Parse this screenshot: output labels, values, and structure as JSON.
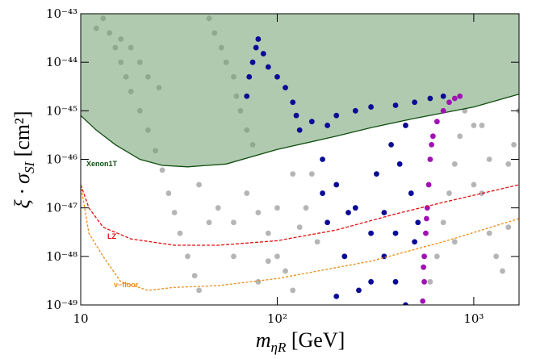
{
  "chart_data": {
    "type": "scatter",
    "x_label": {
      "text": "m",
      "sub": "ηR",
      "unit": " [GeV]"
    },
    "y_label": {
      "text": "ξ · σ",
      "sub": "SI",
      "unit": " [cm²]"
    },
    "log_x": true,
    "log_y": true,
    "xlim": [
      10,
      1700
    ],
    "ylim": [
      1e-49,
      1e-43
    ],
    "xticks": [
      10,
      {
        "value": 100,
        "label": "10²"
      },
      {
        "value": 1000,
        "label": "10³"
      }
    ],
    "yticks": [
      {
        "value": 1e-49,
        "label": "10⁻⁴⁹"
      },
      {
        "value": 1e-48,
        "label": "10⁻⁴⁸"
      },
      {
        "value": 1e-47,
        "label": "10⁻⁴⁷"
      },
      {
        "value": 1e-46,
        "label": "10⁻⁴⁶"
      },
      {
        "value": 1e-45,
        "label": "10⁻⁴⁵"
      },
      {
        "value": 1e-44,
        "label": "10⁻⁴⁴"
      },
      {
        "value": 1e-43,
        "label": "10⁻⁴³"
      }
    ],
    "series": [
      {
        "kind": "points",
        "color": "#b5b5b5",
        "x": [
          13,
          14,
          15,
          16,
          17,
          18,
          20,
          22,
          24,
          26,
          28,
          30,
          32,
          35,
          38,
          40,
          12,
          16,
          18,
          20,
          22,
          25,
          45,
          48,
          52,
          55,
          60,
          62,
          65,
          70,
          75,
          40,
          50,
          60,
          70,
          80,
          90,
          100,
          110,
          120,
          130,
          140,
          150,
          60,
          80,
          45,
          100,
          120,
          90,
          160,
          600,
          650,
          700,
          750,
          800,
          850,
          900,
          1000,
          1100,
          1200,
          1300,
          1400,
          1500,
          1600,
          1700,
          1200,
          1000,
          800,
          1500,
          1100
        ],
        "values": [
          8e-44,
          4e-44,
          2e-44,
          1e-44,
          5e-45,
          2.5e-45,
          1e-45,
          4e-46,
          1.5e-46,
          6e-47,
          2e-47,
          8e-48,
          3e-48,
          1e-48,
          4e-49,
          2e-49,
          5e-44,
          3e-44,
          2e-44,
          1e-44,
          5e-45,
          3e-45,
          8e-44,
          4e-44,
          2e-44,
          1e-44,
          5e-45,
          2e-45,
          1e-45,
          4e-46,
          2e-46,
          3e-47,
          1e-47,
          5e-48,
          2e-47,
          8e-48,
          3e-48,
          1e-48,
          5e-49,
          2e-49,
          4e-48,
          1e-47,
          5e-47,
          1e-48,
          3e-49,
          5e-48,
          1e-47,
          5e-47,
          8e-49,
          2e-48,
          3e-49,
          1e-48,
          5e-48,
          2e-47,
          8e-47,
          3e-46,
          1e-45,
          5e-46,
          2e-47,
          3e-48,
          1e-48,
          5e-49,
          8e-47,
          2e-46,
          1e-45,
          1e-46,
          3e-47,
          2e-48,
          4e-48,
          5e-46
        ]
      },
      {
        "name": "Xenon1T",
        "kind": "line",
        "color": "#0f4d0f",
        "fill": "#6f9f6f",
        "dash": "none",
        "x": [
          10,
          12,
          15,
          20,
          26,
          35,
          55,
          100,
          200,
          300,
          500,
          1000,
          1700
        ],
        "values": [
          8e-46,
          4e-46,
          2e-46,
          1e-46,
          7.5e-47,
          7e-47,
          8e-47,
          1.6e-46,
          3e-46,
          4.5e-46,
          7e-46,
          1.2e-45,
          2.2e-45
        ]
      },
      {
        "kind": "points",
        "color": "#0b0b96",
        "x": [
          70,
          72,
          75,
          78,
          80,
          85,
          90,
          100,
          110,
          120,
          125,
          130,
          150,
          180,
          200,
          250,
          300,
          400,
          500,
          600,
          700,
          170,
          200,
          250,
          300,
          350,
          400,
          450,
          500,
          180,
          220,
          260,
          320,
          380,
          420,
          480,
          520,
          200,
          300,
          400,
          170,
          230,
          350,
          450
        ],
        "values": [
          2e-45,
          5e-45,
          1e-44,
          2e-44,
          3e-44,
          1.5e-44,
          8e-45,
          5e-45,
          3e-45,
          1.5e-45,
          8e-46,
          4e-46,
          6e-46,
          5e-46,
          8e-46,
          1e-45,
          1.2e-45,
          1.3e-45,
          1.5e-45,
          1.8e-45,
          2e-45,
          1e-46,
          3e-47,
          1e-47,
          3e-48,
          1e-48,
          3e-49,
          1e-49,
          2e-48,
          5e-48,
          1e-48,
          2e-49,
          5e-47,
          2e-46,
          8e-47,
          2e-47,
          5e-48,
          1.5e-49,
          3e-49,
          3e-48,
          2e-47,
          8e-48,
          8e-48,
          5e-46
        ]
      },
      {
        "kind": "points",
        "color": "#a012b4",
        "x": [
          550,
          560,
          560,
          570,
          580,
          590,
          600,
          620,
          650,
          700,
          750,
          800,
          850,
          555,
          575,
          610
        ],
        "values": [
          1.2e-49,
          3e-49,
          1e-48,
          3e-48,
          1e-47,
          3e-47,
          1e-46,
          3e-46,
          6e-46,
          1e-45,
          1.5e-45,
          1.8e-45,
          2e-45,
          6e-49,
          6e-48,
          2e-46
        ]
      },
      {
        "name": "LZ",
        "kind": "line",
        "color": "#e01010",
        "dash": "4,2",
        "x": [
          10,
          11,
          13,
          18,
          30,
          50,
          100,
          200,
          400,
          700,
          1700
        ],
        "values": [
          3e-47,
          1e-47,
          4e-48,
          2.3e-48,
          1.7e-48,
          1.7e-48,
          2.1e-48,
          3.5e-48,
          7.5e-48,
          1.3e-47,
          3e-47
        ]
      },
      {
        "name": "ν−floor",
        "kind": "line",
        "color": "#f08c10",
        "dash": "3,2",
        "x": [
          10,
          11,
          13,
          16,
          22,
          30,
          50,
          100,
          300,
          700,
          1700
        ],
        "values": [
          3e-47,
          3e-48,
          1e-48,
          3e-49,
          2e-49,
          2.3e-49,
          2.5e-49,
          3.5e-49,
          8e-49,
          2e-48,
          6e-48
        ]
      }
    ]
  }
}
